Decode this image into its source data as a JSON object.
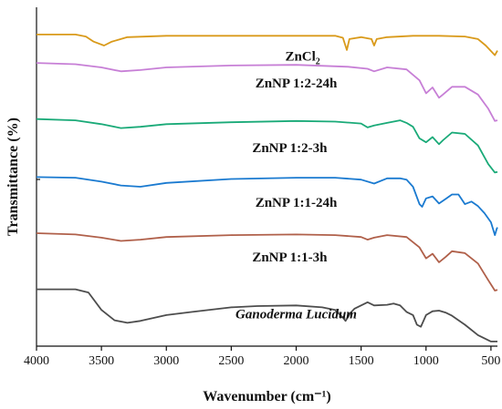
{
  "chart_data": {
    "type": "line",
    "xlabel": "Wavenumber (cm⁻¹)",
    "ylabel": "Transmittance (%)",
    "xlim": [
      4000,
      450
    ],
    "x_ticks": [
      4000,
      3500,
      3000,
      2500,
      2000,
      1500,
      1000,
      500
    ],
    "x_tick_labels": [
      "4000",
      "3500",
      "3000",
      "2500",
      "2000",
      "1500",
      "1000",
      "500"
    ],
    "y_ticks_labeled": false,
    "grid": false,
    "legend": "none",
    "ylim": [
      0,
      100
    ],
    "series": [
      {
        "name": "ZnCl₂",
        "color": "#d99a1a",
        "points": [
          [
            4000,
            95.5
          ],
          [
            3700,
            95.5
          ],
          [
            3620,
            94.9
          ],
          [
            3560,
            93.3
          ],
          [
            3480,
            92.1
          ],
          [
            3420,
            93.3
          ],
          [
            3300,
            94.7
          ],
          [
            3000,
            95.1
          ],
          [
            2500,
            95.1
          ],
          [
            2000,
            95.1
          ],
          [
            1700,
            95.1
          ],
          [
            1640,
            94.5
          ],
          [
            1610,
            90.7
          ],
          [
            1590,
            94.1
          ],
          [
            1500,
            94.7
          ],
          [
            1420,
            94.1
          ],
          [
            1400,
            92.1
          ],
          [
            1380,
            94.1
          ],
          [
            1300,
            94.7
          ],
          [
            1100,
            95.1
          ],
          [
            900,
            95.1
          ],
          [
            700,
            94.9
          ],
          [
            600,
            94.1
          ],
          [
            540,
            92.1
          ],
          [
            470,
            89.1
          ],
          [
            450,
            90.5
          ]
        ]
      },
      {
        "name": "ZnNP 1:2-24h",
        "color": "#c77fd6",
        "points": [
          [
            4000,
            86.7
          ],
          [
            3700,
            86.3
          ],
          [
            3500,
            85.3
          ],
          [
            3350,
            84.1
          ],
          [
            3200,
            84.5
          ],
          [
            3000,
            85.3
          ],
          [
            2500,
            85.9
          ],
          [
            2000,
            86.1
          ],
          [
            1600,
            85.5
          ],
          [
            1450,
            84.9
          ],
          [
            1400,
            84.1
          ],
          [
            1300,
            85.3
          ],
          [
            1150,
            84.7
          ],
          [
            1050,
            81.3
          ],
          [
            1000,
            77.3
          ],
          [
            950,
            79.1
          ],
          [
            900,
            75.9
          ],
          [
            870,
            76.9
          ],
          [
            800,
            79.3
          ],
          [
            700,
            79.3
          ],
          [
            600,
            76.9
          ],
          [
            520,
            72.5
          ],
          [
            470,
            68.7
          ],
          [
            450,
            68.9
          ]
        ]
      },
      {
        "name": "ZnNP 1:2-3h",
        "color": "#1aaa78",
        "points": [
          [
            4000,
            69.3
          ],
          [
            3700,
            68.9
          ],
          [
            3500,
            67.7
          ],
          [
            3350,
            66.5
          ],
          [
            3200,
            66.9
          ],
          [
            3000,
            67.7
          ],
          [
            2500,
            68.3
          ],
          [
            2000,
            68.7
          ],
          [
            1700,
            68.5
          ],
          [
            1500,
            67.9
          ],
          [
            1450,
            66.7
          ],
          [
            1400,
            67.3
          ],
          [
            1300,
            68.1
          ],
          [
            1200,
            68.9
          ],
          [
            1150,
            68.1
          ],
          [
            1100,
            66.9
          ],
          [
            1050,
            63.3
          ],
          [
            1000,
            62.1
          ],
          [
            950,
            63.7
          ],
          [
            900,
            61.5
          ],
          [
            870,
            62.7
          ],
          [
            800,
            65.1
          ],
          [
            700,
            64.7
          ],
          [
            600,
            61.1
          ],
          [
            520,
            55.3
          ],
          [
            470,
            52.7
          ],
          [
            450,
            52.9
          ]
        ]
      },
      {
        "name": "ZnNP 1:1-24h",
        "color": "#1a7ad0",
        "points": [
          [
            4000,
            51.3
          ],
          [
            3700,
            51.1
          ],
          [
            3500,
            49.9
          ],
          [
            3350,
            48.7
          ],
          [
            3200,
            48.3
          ],
          [
            3000,
            49.5
          ],
          [
            2500,
            50.7
          ],
          [
            2000,
            51.1
          ],
          [
            1700,
            51.1
          ],
          [
            1500,
            50.5
          ],
          [
            1400,
            49.3
          ],
          [
            1300,
            50.9
          ],
          [
            1200,
            50.9
          ],
          [
            1150,
            50.5
          ],
          [
            1100,
            48.3
          ],
          [
            1050,
            42.9
          ],
          [
            1030,
            42.1
          ],
          [
            1000,
            44.7
          ],
          [
            950,
            45.3
          ],
          [
            900,
            43.1
          ],
          [
            850,
            44.5
          ],
          [
            800,
            45.9
          ],
          [
            750,
            45.9
          ],
          [
            700,
            42.9
          ],
          [
            650,
            43.7
          ],
          [
            600,
            42.3
          ],
          [
            550,
            40.1
          ],
          [
            500,
            37.3
          ],
          [
            470,
            33.3
          ],
          [
            455,
            35.3
          ],
          [
            450,
            35.7
          ]
        ]
      },
      {
        "name": "ZnNP 1:1-3h",
        "color": "#b0604a",
        "points": [
          [
            4000,
            33.9
          ],
          [
            3700,
            33.5
          ],
          [
            3500,
            32.5
          ],
          [
            3350,
            31.5
          ],
          [
            3200,
            31.9
          ],
          [
            3000,
            32.7
          ],
          [
            2500,
            33.3
          ],
          [
            2000,
            33.5
          ],
          [
            1700,
            33.3
          ],
          [
            1500,
            32.7
          ],
          [
            1450,
            31.9
          ],
          [
            1400,
            32.5
          ],
          [
            1300,
            33.3
          ],
          [
            1150,
            32.7
          ],
          [
            1050,
            29.5
          ],
          [
            1000,
            26.1
          ],
          [
            950,
            27.5
          ],
          [
            900,
            24.9
          ],
          [
            850,
            26.5
          ],
          [
            800,
            28.3
          ],
          [
            700,
            27.7
          ],
          [
            600,
            24.5
          ],
          [
            520,
            19.3
          ],
          [
            470,
            16.1
          ],
          [
            450,
            16.3
          ]
        ]
      },
      {
        "name": "Ganoderma Lucidum",
        "color": "#4d4d4d",
        "points": [
          [
            4000,
            16.5
          ],
          [
            3700,
            16.5
          ],
          [
            3600,
            15.5
          ],
          [
            3500,
            10.1
          ],
          [
            3400,
            6.9
          ],
          [
            3300,
            6.1
          ],
          [
            3200,
            6.7
          ],
          [
            3000,
            8.5
          ],
          [
            2800,
            9.5
          ],
          [
            2500,
            10.9
          ],
          [
            2300,
            11.3
          ],
          [
            2000,
            11.5
          ],
          [
            1800,
            10.9
          ],
          [
            1700,
            10.1
          ],
          [
            1640,
            7.7
          ],
          [
            1620,
            6.7
          ],
          [
            1580,
            9.3
          ],
          [
            1550,
            10.5
          ],
          [
            1450,
            12.5
          ],
          [
            1400,
            11.5
          ],
          [
            1300,
            11.7
          ],
          [
            1250,
            12.1
          ],
          [
            1200,
            11.5
          ],
          [
            1150,
            9.5
          ],
          [
            1100,
            8.5
          ],
          [
            1070,
            5.5
          ],
          [
            1040,
            4.9
          ],
          [
            1000,
            8.5
          ],
          [
            950,
            9.7
          ],
          [
            900,
            9.9
          ],
          [
            850,
            9.3
          ],
          [
            800,
            8.3
          ],
          [
            700,
            5.5
          ],
          [
            600,
            2.3
          ],
          [
            500,
            0.3
          ],
          [
            450,
            0.3
          ]
        ]
      }
    ],
    "annotations": [
      {
        "kind": "formula",
        "base": "ZnCl",
        "sub": "2",
        "x": 1950,
        "y": 87.5,
        "series": 0
      },
      {
        "kind": "text",
        "text": "ZnNP 1:2-24h",
        "x": 2000,
        "y": 79.1,
        "series": 1
      },
      {
        "kind": "text",
        "text": "ZnNP 1:2-3h",
        "x": 2050,
        "y": 59.1,
        "series": 2
      },
      {
        "kind": "text",
        "text": "ZnNP 1:1-24h",
        "x": 2000,
        "y": 42.1,
        "series": 3
      },
      {
        "kind": "text",
        "text": "ZnNP 1:1-3h",
        "x": 2050,
        "y": 25.1,
        "series": 4
      },
      {
        "kind": "text",
        "text": "Ganoderma Lucidum",
        "x": 2000,
        "y": 7.5,
        "series": 5,
        "italic": true
      }
    ]
  }
}
